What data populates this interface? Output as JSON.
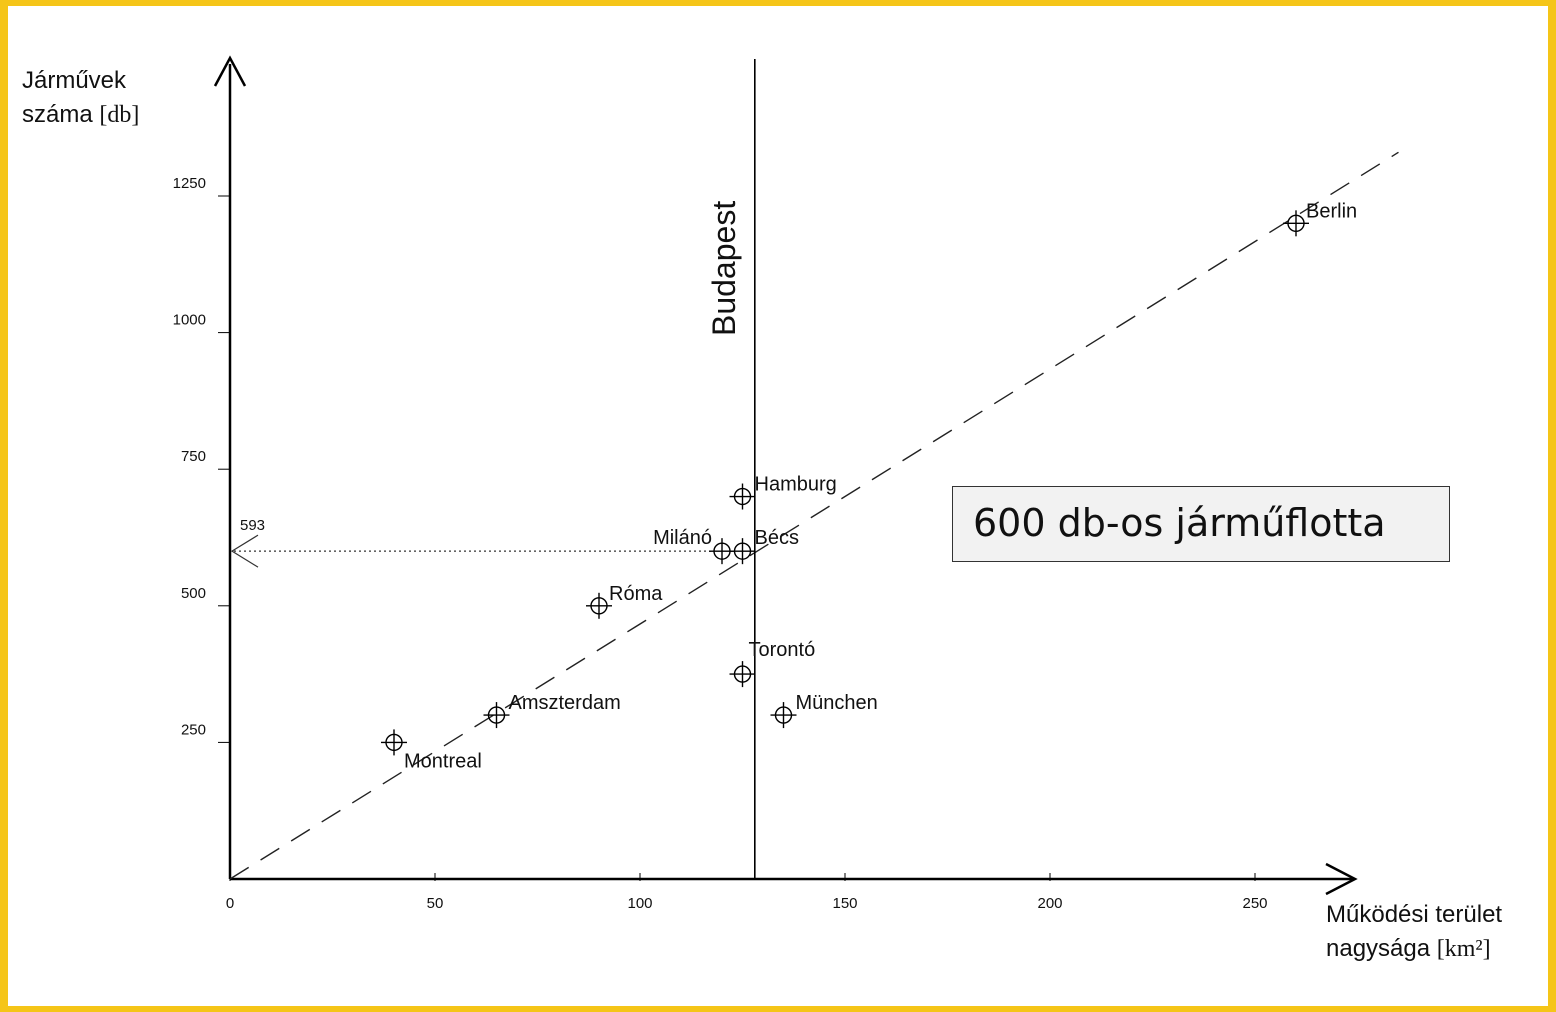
{
  "chart_data": {
    "type": "scatter",
    "title": "",
    "ylabel": "Járművek száma",
    "ylabel_unit": "[db]",
    "xlabel": "Működési terület nagysága",
    "xlabel_unit": "[km²]",
    "xlim": [
      0,
      275
    ],
    "ylim": [
      0,
      1400
    ],
    "xticks": [
      0,
      50,
      100,
      150,
      200,
      250
    ],
    "yticks": [
      250,
      500,
      750,
      1000,
      1250
    ],
    "points": [
      {
        "label": "Montreal",
        "x": 40,
        "y": 250
      },
      {
        "label": "Amszterdam",
        "x": 65,
        "y": 300
      },
      {
        "label": "Róma",
        "x": 90,
        "y": 500
      },
      {
        "label": "Milánó",
        "x": 120,
        "y": 600
      },
      {
        "label": "Bécs",
        "x": 125,
        "y": 600
      },
      {
        "label": "Hamburg",
        "x": 125,
        "y": 700
      },
      {
        "label": "Torontó",
        "x": 125,
        "y": 375
      },
      {
        "label": "München",
        "x": 135,
        "y": 300
      },
      {
        "label": "Berlin",
        "x": 260,
        "y": 1200
      }
    ],
    "trend_line": {
      "style": "dashed",
      "from": [
        0,
        0
      ],
      "to": [
        285,
        1330
      ]
    },
    "vertical_line": {
      "label": "Budapest",
      "x": 128
    },
    "reference": {
      "label": "593",
      "y": 600,
      "style": "dotted"
    },
    "grid": false
  },
  "callout": {
    "text": "600 db-os járműflotta"
  }
}
